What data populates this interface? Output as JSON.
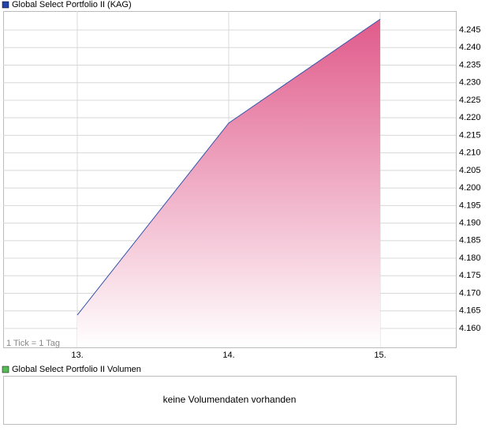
{
  "chart_data": {
    "type": "area",
    "title": "Global Select Portfolio II (KAG)",
    "note": "1 Tick = 1 Tag",
    "categories": [
      "13.",
      "14.",
      "15."
    ],
    "values": [
      4.1638,
      4.2185,
      4.2481
    ],
    "color": "#3355aa",
    "ylim": [
      4.1546,
      4.2504
    ],
    "yticks": [
      {
        "value": 4.16,
        "label": "4.160"
      },
      4.165,
      {
        "value": 4.17,
        "label": "4.170"
      },
      4.175,
      {
        "value": 4.18,
        "label": "4.180"
      },
      4.185,
      {
        "value": 4.19,
        "label": "4.190"
      },
      4.195,
      {
        "value": 4.2,
        "label": "4.200"
      },
      4.205,
      {
        "value": 4.21,
        "label": "4.210"
      },
      4.215,
      {
        "value": 4.22,
        "label": "4.220"
      },
      4.225,
      {
        "value": 4.23,
        "label": "4.230"
      },
      4.235,
      {
        "value": 4.24,
        "label": "4.240"
      },
      4.245
    ],
    "grid": true
  },
  "volume": {
    "title": "Global Select Portfolio II Volumen",
    "message": "keine Volumendaten vorhanden"
  }
}
